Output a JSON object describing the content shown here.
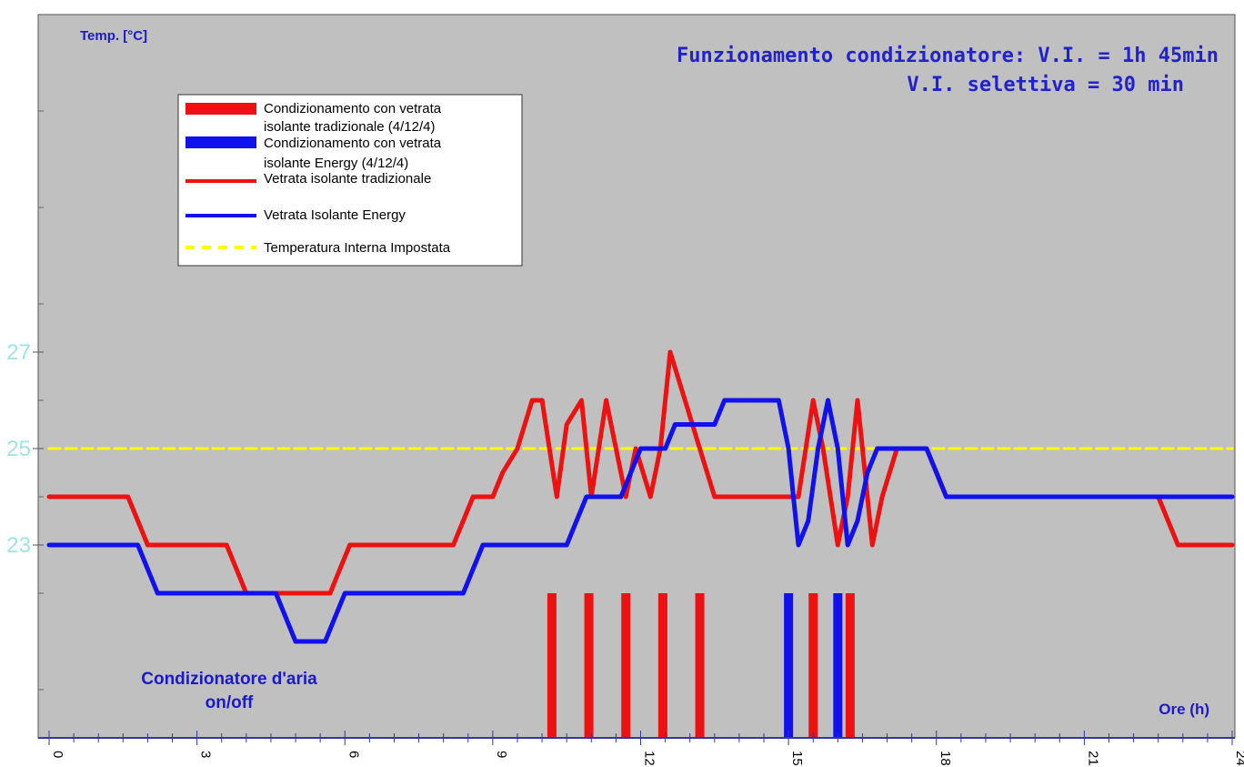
{
  "chart_data": {
    "type": "line",
    "title": "Funzionamento condizionatore: V.I. = 1h 45min",
    "subtitle": "V.I. selettiva = 30 min",
    "ylabel": "Temp. [°C]",
    "xlabel": "Ore (h)",
    "bottom_label_line1": "Condizionatore d'aria",
    "bottom_label_line2": "on/off",
    "xlim": [
      0,
      24
    ],
    "ylim": [
      19,
      34
    ],
    "xticks": [
      0,
      3,
      6,
      9,
      12,
      15,
      18,
      21,
      24
    ],
    "xtick_labels": [
      "0",
      "3",
      "6",
      "9",
      "12",
      "15",
      "18",
      "21",
      "24"
    ],
    "yticks": [
      23,
      25,
      27
    ],
    "ytick_labels": [
      "23",
      "25",
      "27"
    ],
    "grid": false,
    "background": "#c0c0c0",
    "legend_placement": "top-left",
    "legend": {
      "item1_line1": "Condizionamento con vetrata",
      "item1_line2": "isolante tradizionale (4/12/4)",
      "item2_line1": "Condizionamento con vetrata",
      "item2_line2": "isolante Energy (4/12/4)",
      "item3": "Vetrata isolante tradizionale",
      "item4": "Vetrata Isolante Energy",
      "item5": "Temperatura Interna Impostata"
    },
    "series": [
      {
        "name": "Vetrata isolante tradizionale",
        "color": "#ee1111",
        "x": [
          0,
          1.6,
          1.8,
          2.0,
          3.6,
          3.8,
          4.0,
          5.7,
          5.9,
          6.1,
          8.2,
          8.4,
          8.6,
          9.0,
          9.2,
          9.5,
          9.8,
          10.0,
          10.3,
          10.5,
          10.8,
          11.0,
          11.3,
          11.5,
          11.7,
          11.9,
          12.2,
          12.4,
          12.6,
          12.9,
          13.2,
          13.5,
          13.9,
          15.2,
          15.5,
          15.7,
          16.0,
          16.2,
          16.4,
          16.7,
          16.9,
          17.2,
          17.6,
          17.8,
          18.0,
          18.2,
          18.4,
          22.5,
          22.7,
          22.9,
          24
        ],
        "y": [
          24,
          24,
          23.5,
          23,
          23,
          22.5,
          22,
          22,
          22.5,
          23,
          23,
          23.5,
          24,
          24,
          24.5,
          25,
          26,
          26,
          24,
          25.5,
          26,
          24,
          26,
          25,
          24,
          25,
          24,
          25,
          27,
          26,
          25,
          24,
          24,
          24,
          26,
          25,
          23,
          24,
          26,
          23,
          24,
          25,
          25,
          25,
          24.5,
          24,
          24,
          24,
          23.5,
          23,
          23
        ]
      },
      {
        "name": "Vetrata Isolante Energy",
        "color": "#1111ee",
        "x": [
          0,
          1.8,
          2.0,
          2.2,
          4.6,
          4.8,
          5.0,
          5.6,
          5.8,
          6.0,
          8.4,
          8.6,
          8.8,
          9.6,
          9.8,
          10.0,
          10.5,
          10.7,
          10.9,
          11.6,
          11.8,
          12.0,
          12.2,
          12.5,
          12.7,
          12.9,
          13.5,
          13.7,
          13.9,
          14.8,
          15.0,
          15.1,
          15.2,
          15.4,
          15.6,
          15.8,
          16.0,
          16.2,
          16.4,
          16.6,
          16.8,
          17.2,
          17.8,
          18.0,
          18.2,
          18.4,
          24
        ],
        "y": [
          23,
          23,
          22.5,
          22,
          22,
          21.5,
          21,
          21,
          21.5,
          22,
          22,
          22.5,
          23,
          23,
          23,
          23,
          23,
          23.5,
          24,
          24,
          24.5,
          25,
          25,
          25,
          25.5,
          25.5,
          25.5,
          26,
          26,
          26,
          25,
          24,
          23,
          23.5,
          25,
          26,
          25,
          23,
          23.5,
          24.5,
          25,
          25,
          25,
          24.5,
          24,
          24,
          24
        ]
      },
      {
        "name": "Temperatura Interna Impostata",
        "color": "#ffff00",
        "x": [
          0,
          24
        ],
        "y": [
          25,
          25
        ]
      }
    ],
    "onoff_bars": [
      {
        "x": 10.2,
        "color": "#ee1111"
      },
      {
        "x": 10.95,
        "color": "#ee1111"
      },
      {
        "x": 11.7,
        "color": "#ee1111"
      },
      {
        "x": 12.45,
        "color": "#ee1111"
      },
      {
        "x": 13.2,
        "color": "#ee1111"
      },
      {
        "x": 15.0,
        "color": "#1111ee"
      },
      {
        "x": 15.5,
        "color": "#ee1111"
      },
      {
        "x": 16.0,
        "color": "#1111ee"
      },
      {
        "x": 16.25,
        "color": "#ee1111"
      }
    ]
  }
}
